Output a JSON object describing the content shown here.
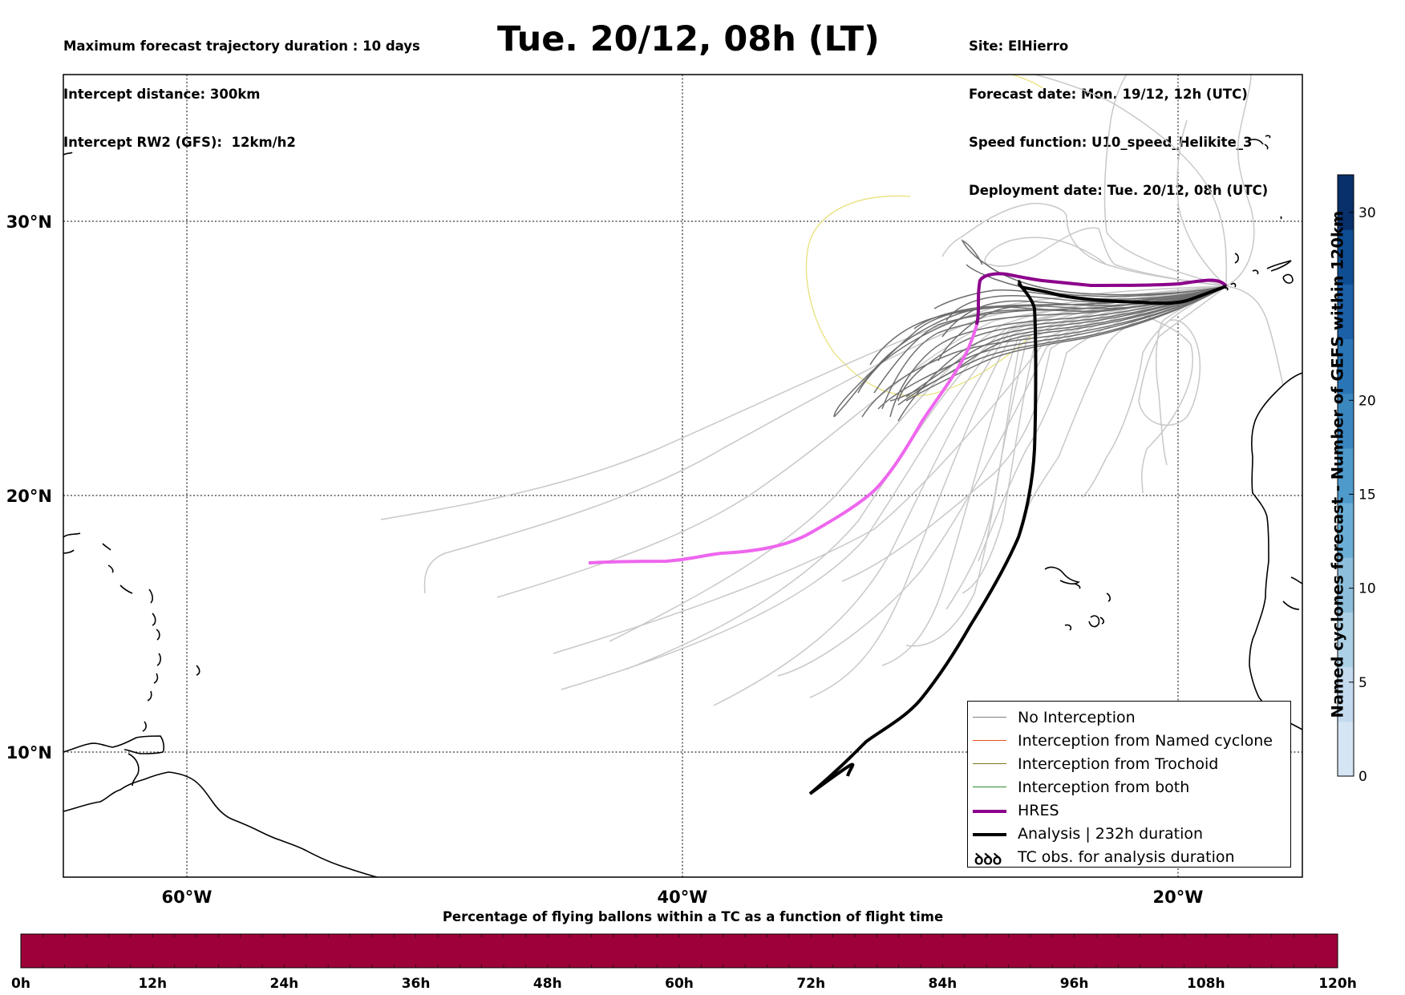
{
  "header": {
    "left_lines": [
      "Maximum forecast trajectory duration : 10 days",
      "Intercept distance: 300km",
      "Intercept RW2 (GFS):  12km/h2"
    ],
    "title": "Tue. 20/12, 08h (LT)",
    "right_lines": [
      "Site: ElHierro",
      "Forecast date: Mon. 19/12, 12h (UTC)",
      "Speed function: U10_speed_Helikite_3",
      "Deployment date: Tue. 20/12, 08h (UTC)"
    ]
  },
  "map": {
    "lon_labels": [
      "60°W",
      "40°W",
      "20°W"
    ],
    "lat_labels": [
      "30°N",
      "20°N",
      "10°N"
    ],
    "colors": {
      "ensemble": "#c8c8c8",
      "no_interception": "#6e6e6e",
      "hres": "#8b008b",
      "hres_extension": "#ee66ee",
      "analysis": "#000000",
      "trochoid_contour": "#e8e07a",
      "coast": "#000000"
    }
  },
  "legend": {
    "items": [
      {
        "label": "No Interception",
        "color": "#808080",
        "style": "thin"
      },
      {
        "label": "Interception from Named cyclone",
        "color": "#e8501e",
        "style": "thin"
      },
      {
        "label": "Interception from Trochoid",
        "color": "#7a7a20",
        "style": "thin"
      },
      {
        "label": "Interception from both",
        "color": "#2a8a2a",
        "style": "thin"
      },
      {
        "label": "HRES",
        "color": "#8b008b",
        "style": "thick"
      },
      {
        "label": "Analysis | 232h duration",
        "color": "#000000",
        "style": "thick"
      },
      {
        "label": "TC obs. for analysis duration",
        "color": "#000000",
        "style": "symbol",
        "symbol": "ꝺꝺꝺ"
      }
    ]
  },
  "colorbar_right": {
    "title": "Named cyclones forecast - Number of GEFS within 120km",
    "ticks": [
      "0",
      "5",
      "10",
      "15",
      "20",
      "30"
    ],
    "tick_values": [
      0,
      5,
      10,
      15,
      20,
      30
    ],
    "max": 32,
    "colors": [
      "#d6e5f4",
      "#c4daee",
      "#acd0e6",
      "#8dbedc",
      "#6aaed6",
      "#4e9acb",
      "#3a87c0",
      "#2a75b5",
      "#1c60a8",
      "#0f4d92",
      "#08306b"
    ]
  },
  "colorbar_bottom": {
    "title": "Percentage of flying ballons within a TC as a function of flight time",
    "ticks": [
      "0h",
      "12h",
      "24h",
      "36h",
      "48h",
      "60h",
      "72h",
      "84h",
      "96h",
      "108h",
      "120h"
    ],
    "fill_color": "#9e0039"
  }
}
